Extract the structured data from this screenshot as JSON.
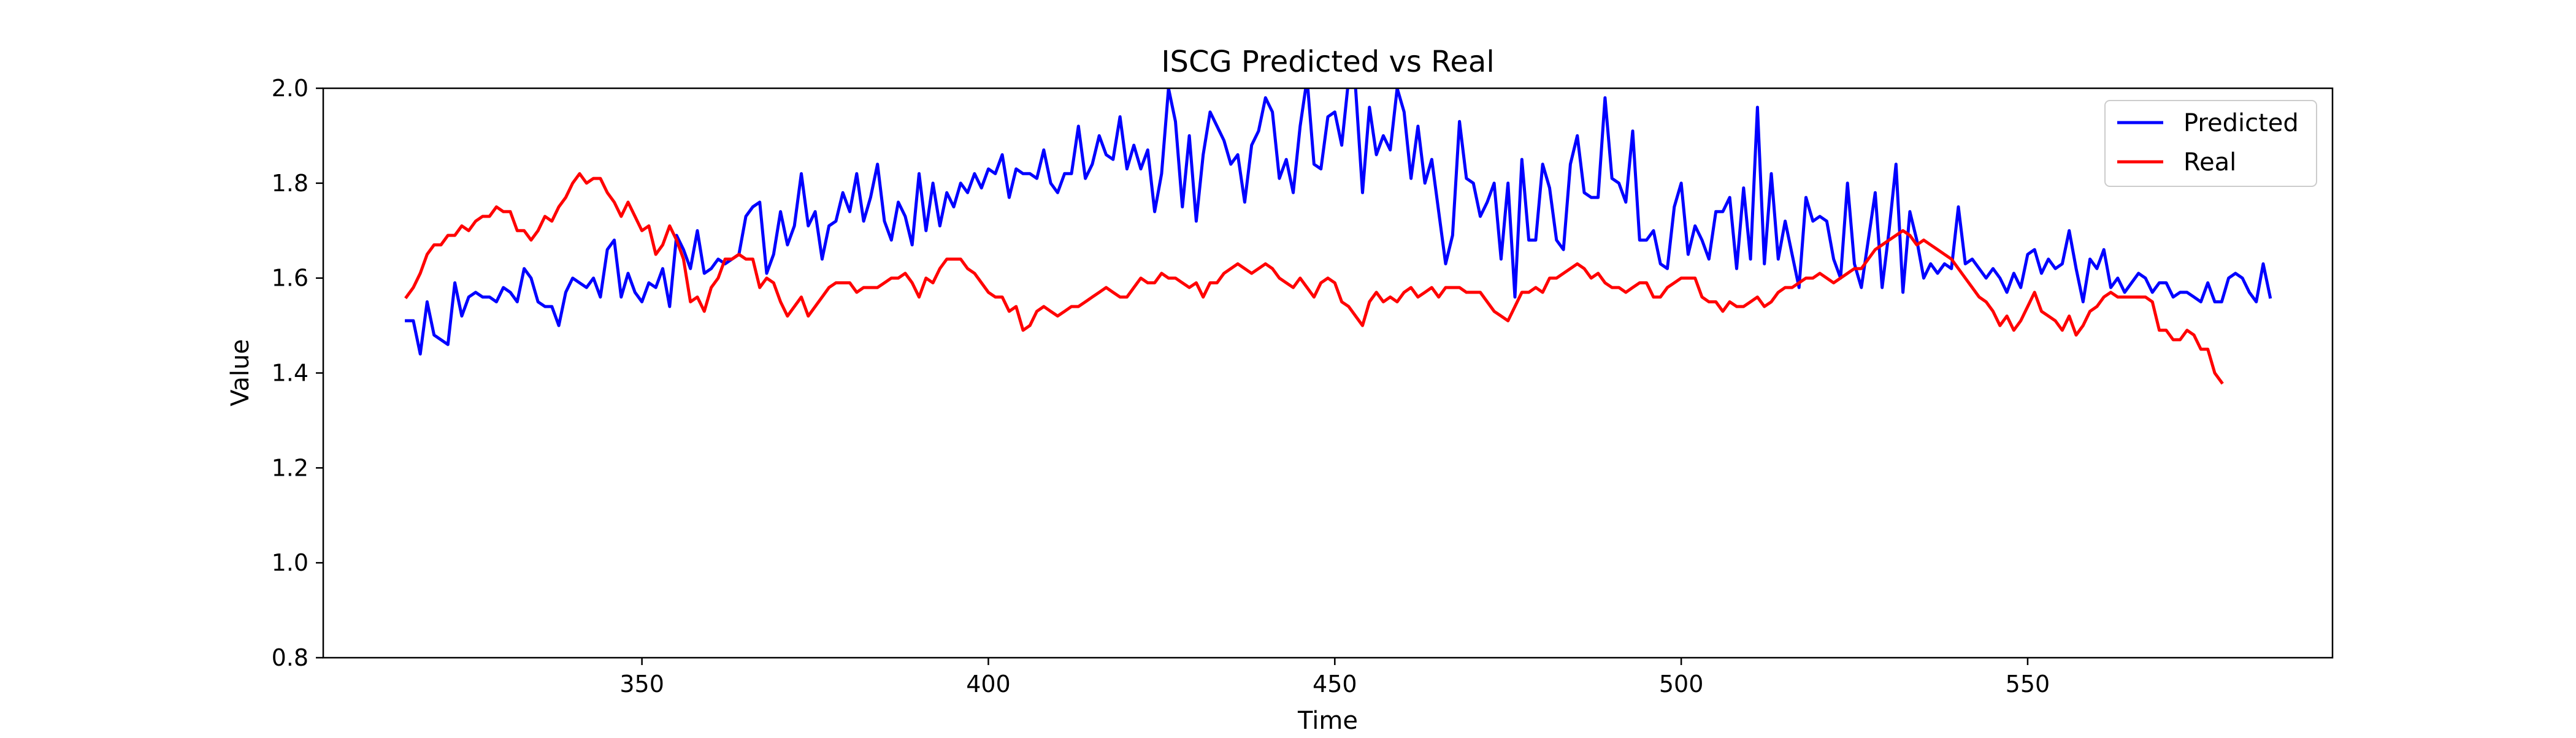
{
  "chart_data": {
    "type": "line",
    "title": "ISCG Predicted vs Real",
    "xlabel": "Time",
    "ylabel": "Value",
    "xlim": [
      304,
      594
    ],
    "ylim": [
      0.8,
      2.0
    ],
    "xticks": [
      350,
      400,
      450,
      500,
      550
    ],
    "yticks": [
      0.8,
      1.0,
      1.2,
      1.4,
      1.6,
      1.8,
      2.0
    ],
    "grid": false,
    "legend_position": "top-right",
    "series": [
      {
        "name": "Predicted",
        "color": "#0000ff",
        "x_start": 316,
        "x_step": 1,
        "values": [
          1.51,
          1.51,
          1.44,
          1.55,
          1.48,
          1.47,
          1.46,
          1.59,
          1.52,
          1.56,
          1.57,
          1.56,
          1.56,
          1.55,
          1.58,
          1.57,
          1.55,
          1.62,
          1.6,
          1.55,
          1.54,
          1.54,
          1.5,
          1.57,
          1.6,
          1.59,
          1.58,
          1.6,
          1.56,
          1.66,
          1.68,
          1.56,
          1.61,
          1.57,
          1.55,
          1.59,
          1.58,
          1.62,
          1.54,
          1.69,
          1.66,
          1.62,
          1.7,
          1.61,
          1.62,
          1.64,
          1.63,
          1.64,
          1.65,
          1.73,
          1.75,
          1.76,
          1.61,
          1.65,
          1.74,
          1.67,
          1.71,
          1.82,
          1.71,
          1.74,
          1.64,
          1.71,
          1.72,
          1.78,
          1.74,
          1.82,
          1.72,
          1.77,
          1.84,
          1.72,
          1.68,
          1.76,
          1.73,
          1.67,
          1.82,
          1.7,
          1.8,
          1.71,
          1.78,
          1.75,
          1.8,
          1.78,
          1.82,
          1.79,
          1.83,
          1.82,
          1.86,
          1.77,
          1.83,
          1.82,
          1.82,
          1.81,
          1.87,
          1.8,
          1.78,
          1.82,
          1.82,
          1.92,
          1.81,
          1.84,
          1.9,
          1.86,
          1.85,
          1.94,
          1.83,
          1.88,
          1.83,
          1.87,
          1.74,
          1.82,
          2.0,
          1.93,
          1.75,
          1.9,
          1.72,
          1.86,
          1.95,
          1.92,
          1.89,
          1.84,
          1.86,
          1.76,
          1.88,
          1.91,
          1.98,
          1.95,
          1.81,
          1.85,
          1.78,
          1.92,
          2.02,
          1.84,
          1.83,
          1.94,
          1.95,
          1.88,
          2.02,
          2.0,
          1.78,
          1.96,
          1.86,
          1.9,
          1.87,
          2.0,
          1.95,
          1.81,
          1.92,
          1.8,
          1.85,
          1.74,
          1.63,
          1.69,
          1.93,
          1.81,
          1.8,
          1.73,
          1.76,
          1.8,
          1.64,
          1.8,
          1.56,
          1.85,
          1.68,
          1.68,
          1.84,
          1.79,
          1.68,
          1.66,
          1.84,
          1.9,
          1.78,
          1.77,
          1.77,
          1.98,
          1.81,
          1.8,
          1.76,
          1.91,
          1.68,
          1.68,
          1.7,
          1.63,
          1.62,
          1.75,
          1.8,
          1.65,
          1.71,
          1.68,
          1.64,
          1.74,
          1.74,
          1.77,
          1.62,
          1.79,
          1.64,
          1.96,
          1.63,
          1.82,
          1.64,
          1.72,
          1.65,
          1.58,
          1.77,
          1.72,
          1.73,
          1.72,
          1.64,
          1.6,
          1.8,
          1.63,
          1.58,
          1.68,
          1.78,
          1.58,
          1.7,
          1.84,
          1.57,
          1.74,
          1.68,
          1.6,
          1.63,
          1.61,
          1.63,
          1.62,
          1.75,
          1.63,
          1.64,
          1.62,
          1.6,
          1.62,
          1.6,
          1.57,
          1.61,
          1.58,
          1.65,
          1.66,
          1.61,
          1.64,
          1.62,
          1.63,
          1.7,
          1.62,
          1.55,
          1.64,
          1.62,
          1.66,
          1.58,
          1.6,
          1.57,
          1.59,
          1.61,
          1.6,
          1.57,
          1.59,
          1.59,
          1.56,
          1.57,
          1.57,
          1.56,
          1.55,
          1.59,
          1.55,
          1.55,
          1.6,
          1.61,
          1.6,
          1.57,
          1.55,
          1.63,
          1.56
        ]
      },
      {
        "name": "Real",
        "color": "#ff0000",
        "x_start": 316,
        "x_step": 1,
        "values": [
          1.56,
          1.58,
          1.61,
          1.65,
          1.67,
          1.67,
          1.69,
          1.69,
          1.71,
          1.7,
          1.72,
          1.73,
          1.73,
          1.75,
          1.74,
          1.74,
          1.7,
          1.7,
          1.68,
          1.7,
          1.73,
          1.72,
          1.75,
          1.77,
          1.8,
          1.82,
          1.8,
          1.81,
          1.81,
          1.78,
          1.76,
          1.73,
          1.76,
          1.73,
          1.7,
          1.71,
          1.65,
          1.67,
          1.71,
          1.68,
          1.64,
          1.55,
          1.56,
          1.53,
          1.58,
          1.6,
          1.64,
          1.64,
          1.65,
          1.64,
          1.64,
          1.58,
          1.6,
          1.59,
          1.55,
          1.52,
          1.54,
          1.56,
          1.52,
          1.54,
          1.56,
          1.58,
          1.59,
          1.59,
          1.59,
          1.57,
          1.58,
          1.58,
          1.58,
          1.59,
          1.6,
          1.6,
          1.61,
          1.59,
          1.56,
          1.6,
          1.59,
          1.62,
          1.64,
          1.64,
          1.64,
          1.62,
          1.61,
          1.59,
          1.57,
          1.56,
          1.56,
          1.53,
          1.54,
          1.49,
          1.5,
          1.53,
          1.54,
          1.53,
          1.52,
          1.53,
          1.54,
          1.54,
          1.55,
          1.56,
          1.57,
          1.58,
          1.57,
          1.56,
          1.56,
          1.58,
          1.6,
          1.59,
          1.59,
          1.61,
          1.6,
          1.6,
          1.59,
          1.58,
          1.59,
          1.56,
          1.59,
          1.59,
          1.61,
          1.62,
          1.63,
          1.62,
          1.61,
          1.62,
          1.63,
          1.62,
          1.6,
          1.59,
          1.58,
          1.6,
          1.58,
          1.56,
          1.59,
          1.6,
          1.59,
          1.55,
          1.54,
          1.52,
          1.5,
          1.55,
          1.57,
          1.55,
          1.56,
          1.55,
          1.57,
          1.58,
          1.56,
          1.57,
          1.58,
          1.56,
          1.58,
          1.58,
          1.58,
          1.57,
          1.57,
          1.57,
          1.55,
          1.53,
          1.52,
          1.51,
          1.54,
          1.57,
          1.57,
          1.58,
          1.57,
          1.6,
          1.6,
          1.61,
          1.62,
          1.63,
          1.62,
          1.6,
          1.61,
          1.59,
          1.58,
          1.58,
          1.57,
          1.58,
          1.59,
          1.59,
          1.56,
          1.56,
          1.58,
          1.59,
          1.6,
          1.6,
          1.6,
          1.56,
          1.55,
          1.55,
          1.53,
          1.55,
          1.54,
          1.54,
          1.55,
          1.56,
          1.54,
          1.55,
          1.57,
          1.58,
          1.58,
          1.59,
          1.6,
          1.6,
          1.61,
          1.6,
          1.59,
          1.6,
          1.61,
          1.62,
          1.62,
          1.64,
          1.66,
          1.67,
          1.68,
          1.69,
          1.7,
          1.69,
          1.67,
          1.68,
          1.67,
          1.66,
          1.65,
          1.64,
          1.62,
          1.6,
          1.58,
          1.56,
          1.55,
          1.53,
          1.5,
          1.52,
          1.49,
          1.51,
          1.54,
          1.57,
          1.53,
          1.52,
          1.51,
          1.49,
          1.52,
          1.48,
          1.5,
          1.53,
          1.54,
          1.56,
          1.57,
          1.56,
          1.56,
          1.56,
          1.56,
          1.56,
          1.55,
          1.49,
          1.49,
          1.47,
          1.47,
          1.49,
          1.48,
          1.45,
          1.45,
          1.4,
          1.38
        ]
      }
    ]
  }
}
